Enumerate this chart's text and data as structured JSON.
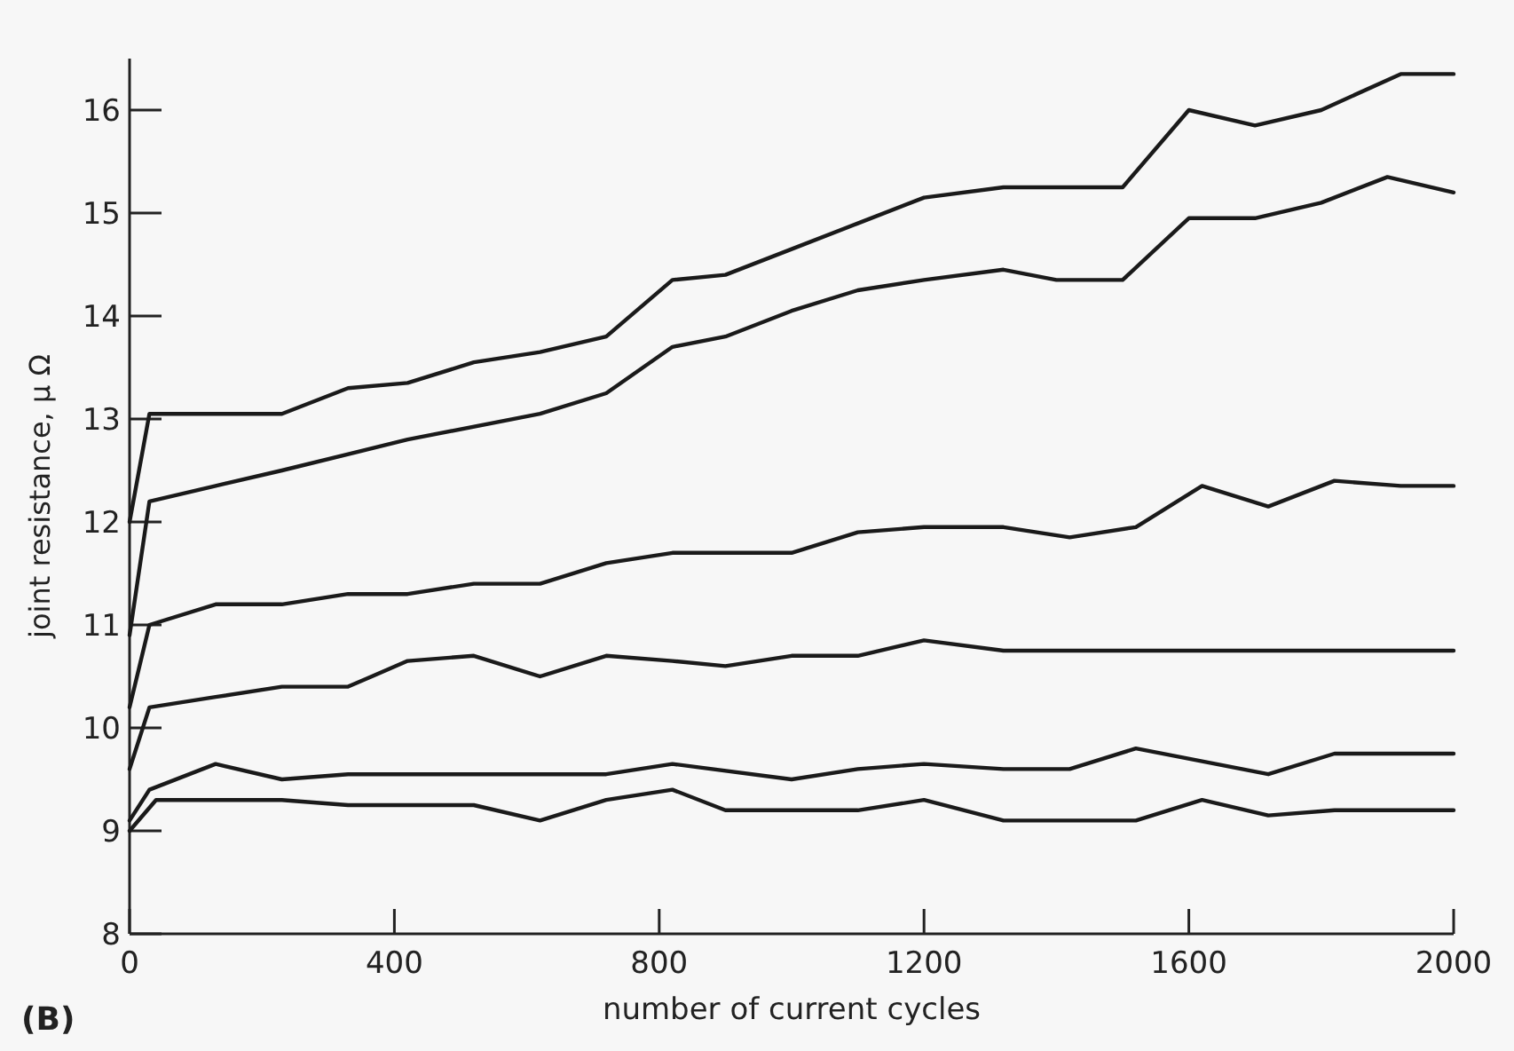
{
  "chart_data": {
    "type": "line",
    "xlabel": "number of current cycles",
    "ylabel": "joint resistance, μ Ω",
    "annotations": [
      "(B)"
    ],
    "xlim": [
      0,
      2000
    ],
    "ylim": [
      8,
      16.5
    ],
    "xticks": [
      0,
      400,
      800,
      1200,
      1600,
      2000
    ],
    "yticks": [
      8,
      9,
      10,
      11,
      12,
      13,
      14,
      15,
      16
    ],
    "grid": false,
    "marker": "none",
    "line_style": "solid",
    "series": [
      {
        "color": "#1a1a1a",
        "x": [
          0,
          30,
          230,
          330,
          420,
          520,
          620,
          720,
          820,
          900,
          1000,
          1100,
          1200,
          1320,
          1500,
          1600,
          1700,
          1800,
          1920,
          2000
        ],
        "values": [
          12.0,
          13.05,
          13.05,
          13.3,
          13.35,
          13.55,
          13.65,
          13.8,
          14.35,
          14.4,
          14.65,
          14.9,
          15.15,
          15.25,
          15.25,
          16.0,
          15.85,
          16.0,
          16.35,
          16.35
        ]
      },
      {
        "color": "#1a1a1a",
        "x": [
          0,
          30,
          130,
          230,
          420,
          620,
          720,
          820,
          900,
          1000,
          1100,
          1200,
          1320,
          1400,
          1500,
          1600,
          1700,
          1800,
          1900,
          2000
        ],
        "values": [
          10.9,
          12.2,
          12.35,
          12.5,
          12.8,
          13.05,
          13.25,
          13.7,
          13.8,
          14.05,
          14.25,
          14.35,
          14.45,
          14.35,
          14.35,
          14.95,
          14.95,
          15.1,
          15.35,
          15.2
        ]
      },
      {
        "color": "#1a1a1a",
        "x": [
          0,
          30,
          130,
          230,
          330,
          420,
          520,
          620,
          720,
          820,
          1000,
          1100,
          1200,
          1320,
          1420,
          1520,
          1620,
          1720,
          1820,
          1920,
          2000
        ],
        "values": [
          10.2,
          11.0,
          11.2,
          11.2,
          11.3,
          11.3,
          11.4,
          11.4,
          11.6,
          11.7,
          11.7,
          11.9,
          11.95,
          11.95,
          11.85,
          11.95,
          12.35,
          12.15,
          12.4,
          12.35,
          12.35
        ]
      },
      {
        "color": "#1a1a1a",
        "x": [
          0,
          30,
          130,
          230,
          330,
          420,
          520,
          620,
          720,
          820,
          900,
          1000,
          1100,
          1200,
          1320,
          1500,
          2000
        ],
        "values": [
          9.6,
          10.2,
          10.3,
          10.4,
          10.4,
          10.65,
          10.7,
          10.5,
          10.7,
          10.65,
          10.6,
          10.7,
          10.7,
          10.85,
          10.75,
          10.75,
          10.75
        ]
      },
      {
        "color": "#1a1a1a",
        "x": [
          0,
          30,
          130,
          230,
          330,
          720,
          820,
          1000,
          1100,
          1200,
          1320,
          1420,
          1520,
          1720,
          1820,
          2000
        ],
        "values": [
          9.1,
          9.4,
          9.65,
          9.5,
          9.55,
          9.55,
          9.65,
          9.5,
          9.6,
          9.65,
          9.6,
          9.6,
          9.8,
          9.55,
          9.75,
          9.75
        ]
      },
      {
        "color": "#1a1a1a",
        "x": [
          0,
          40,
          230,
          330,
          520,
          620,
          720,
          820,
          900,
          1100,
          1200,
          1320,
          1520,
          1620,
          1720,
          1820,
          2000
        ],
        "values": [
          9.0,
          9.3,
          9.3,
          9.25,
          9.25,
          9.1,
          9.3,
          9.4,
          9.2,
          9.2,
          9.3,
          9.1,
          9.1,
          9.3,
          9.15,
          9.2,
          9.2
        ]
      }
    ]
  }
}
